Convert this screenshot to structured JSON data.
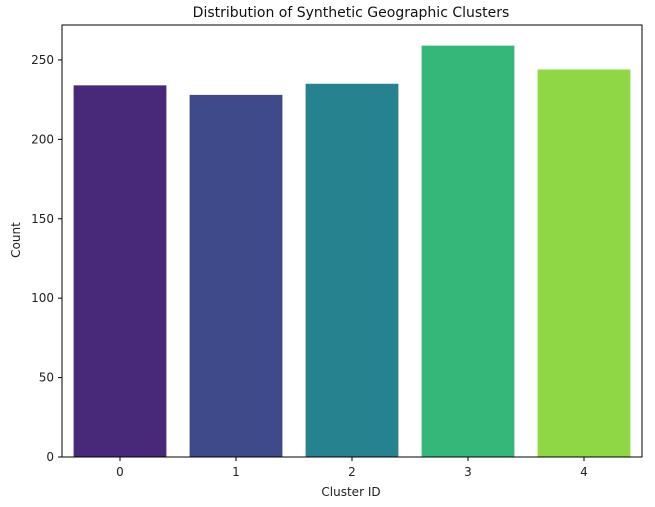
{
  "chart_data": {
    "type": "bar",
    "title": "Distribution of Synthetic Geographic Clusters",
    "xlabel": "Cluster ID",
    "ylabel": "Count",
    "categories": [
      "0",
      "1",
      "2",
      "3",
      "4"
    ],
    "values": [
      234,
      228,
      235,
      259,
      244
    ],
    "colors": [
      "#482878",
      "#3e4a89",
      "#26828e",
      "#35b779",
      "#8fd744"
    ],
    "ylim": [
      0,
      272
    ],
    "yticks": [
      0,
      50,
      100,
      150,
      200,
      250
    ],
    "ytick_labels": [
      "0",
      "50",
      "100",
      "150",
      "200",
      "250"
    ],
    "grid": false,
    "legend": "none"
  }
}
